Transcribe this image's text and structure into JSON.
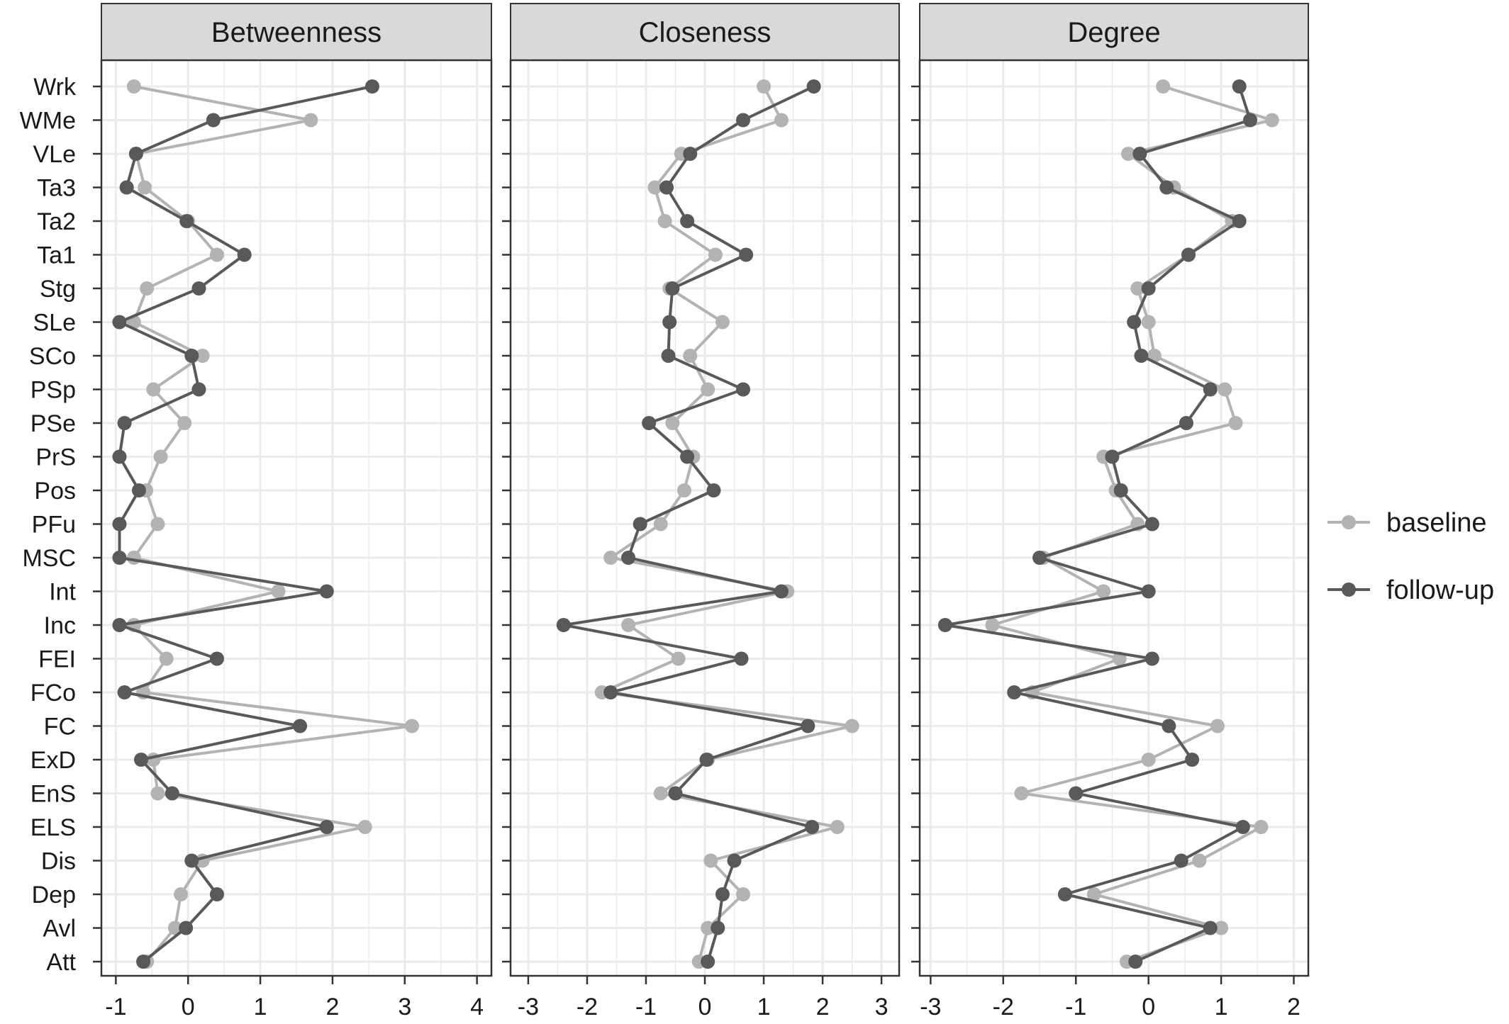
{
  "chart_data": {
    "type": "line",
    "facets": [
      "Betweenness",
      "Closeness",
      "Degree"
    ],
    "categories": [
      "Wrk",
      "WMe",
      "VLe",
      "Ta3",
      "Ta2",
      "Ta1",
      "Stg",
      "SLe",
      "SCo",
      "PSp",
      "PSe",
      "PrS",
      "Pos",
      "PFu",
      "MSC",
      "Int",
      "Inc",
      "FEI",
      "FCo",
      "FC",
      "ExD",
      "EnS",
      "ELS",
      "Dis",
      "Dep",
      "Avl",
      "Att"
    ],
    "legend": {
      "position": "right",
      "entries": [
        "baseline",
        "follow-up"
      ]
    },
    "grid": true,
    "colors": {
      "baseline": "#b3b3b3",
      "follow-up": "#595959",
      "strip_bg": "#d9d9d9",
      "grid": "#ebebeb",
      "panel_border": "#333333"
    },
    "panels": [
      {
        "title": "Betweenness",
        "xlim": [
          -1.2,
          4.2
        ],
        "ticks": [
          -1,
          0,
          1,
          2,
          3,
          4
        ],
        "tick_labels": [
          "-1",
          "0",
          "1",
          "2",
          "3",
          "4"
        ],
        "series": [
          {
            "name": "baseline",
            "values": [
              -0.75,
              1.7,
              -0.72,
              -0.6,
              0.0,
              0.4,
              -0.57,
              -0.75,
              0.2,
              -0.48,
              -0.05,
              -0.38,
              -0.58,
              -0.42,
              -0.75,
              1.25,
              -0.75,
              -0.3,
              -0.62,
              3.1,
              -0.48,
              -0.42,
              2.45,
              0.2,
              -0.1,
              -0.18,
              -0.57
            ]
          },
          {
            "name": "follow-up",
            "values": [
              2.55,
              0.35,
              -0.72,
              -0.85,
              -0.02,
              0.78,
              0.15,
              -0.95,
              0.05,
              0.15,
              -0.88,
              -0.95,
              -0.68,
              -0.95,
              -0.95,
              1.92,
              -0.95,
              0.4,
              -0.88,
              1.55,
              -0.65,
              -0.22,
              1.92,
              0.05,
              0.4,
              -0.03,
              -0.62
            ]
          }
        ]
      },
      {
        "title": "Closeness",
        "xlim": [
          -3.3,
          3.3
        ],
        "ticks": [
          -3,
          -2,
          -1,
          0,
          1,
          2,
          3
        ],
        "tick_labels": [
          "-3",
          "-2",
          "-1",
          "0",
          "1",
          "2",
          "3"
        ],
        "series": [
          {
            "name": "baseline",
            "values": [
              1.0,
              1.3,
              -0.4,
              -0.85,
              -0.68,
              0.18,
              -0.6,
              0.3,
              -0.25,
              0.05,
              -0.55,
              -0.2,
              -0.35,
              -0.75,
              -1.6,
              1.4,
              -1.3,
              -0.45,
              -1.75,
              2.5,
              0.05,
              -0.75,
              2.25,
              0.1,
              0.65,
              0.05,
              -0.1
            ]
          },
          {
            "name": "follow-up",
            "values": [
              1.85,
              0.65,
              -0.25,
              -0.65,
              -0.3,
              0.7,
              -0.55,
              -0.6,
              -0.62,
              0.65,
              -0.95,
              -0.3,
              0.15,
              -1.1,
              -1.3,
              1.3,
              -2.4,
              0.62,
              -1.6,
              1.75,
              0.03,
              -0.5,
              1.82,
              0.5,
              0.3,
              0.22,
              0.05
            ]
          }
        ]
      },
      {
        "title": "Degree",
        "xlim": [
          -3.15,
          2.2
        ],
        "ticks": [
          -3,
          -2,
          -1,
          0,
          1,
          2
        ],
        "tick_labels": [
          "-3",
          "-2",
          "-1",
          "0",
          "1",
          "2"
        ],
        "series": [
          {
            "name": "baseline",
            "values": [
              0.2,
              1.7,
              -0.28,
              0.35,
              1.15,
              0.55,
              -0.15,
              0.0,
              0.08,
              1.05,
              1.2,
              -0.62,
              -0.45,
              -0.15,
              -1.45,
              -0.62,
              -2.15,
              -0.4,
              -1.6,
              0.95,
              0.0,
              -1.75,
              1.55,
              0.7,
              -0.75,
              1.0,
              -0.3
            ]
          },
          {
            "name": "follow-up",
            "values": [
              1.25,
              1.4,
              -0.12,
              0.25,
              1.25,
              0.55,
              0.0,
              -0.2,
              -0.1,
              0.85,
              0.52,
              -0.5,
              -0.38,
              0.05,
              -1.5,
              0.0,
              -2.8,
              0.05,
              -1.85,
              0.28,
              0.6,
              -1.0,
              1.3,
              0.45,
              -1.15,
              0.85,
              -0.18
            ]
          }
        ]
      }
    ]
  }
}
